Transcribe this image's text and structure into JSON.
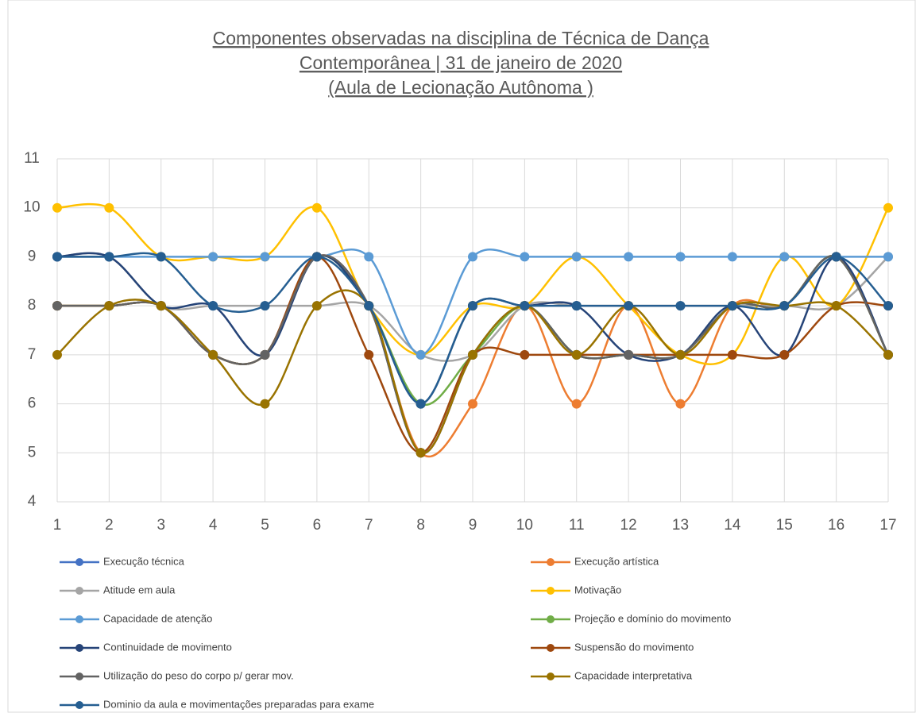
{
  "chart_data": {
    "type": "line",
    "smooth": true,
    "grid": true,
    "title": [
      "Componentes observadas na disciplina de Técnica de Dança",
      "Contemporânea | 31 de janeiro de 2020",
      "(Aula de Lecionação Autônoma )"
    ],
    "x": [
      1,
      2,
      3,
      4,
      5,
      6,
      7,
      8,
      9,
      10,
      11,
      12,
      13,
      14,
      15,
      16,
      17
    ],
    "xlim": [
      1,
      17
    ],
    "xticks": [
      1,
      2,
      3,
      4,
      5,
      6,
      7,
      8,
      9,
      10,
      11,
      12,
      13,
      14,
      15,
      16,
      17
    ],
    "ylim": [
      4,
      11
    ],
    "yticks": [
      4,
      5,
      6,
      7,
      8,
      9,
      10,
      11
    ],
    "legend": "bottom",
    "series": [
      {
        "name": "Execução técnica",
        "color": "#4472c4",
        "values": [
          8,
          8,
          8,
          7,
          7,
          9,
          8,
          5,
          7,
          8,
          7,
          7,
          7,
          8,
          8,
          9,
          7
        ]
      },
      {
        "name": "Execução artística",
        "color": "#ed7d31",
        "values": [
          8,
          8,
          8,
          7,
          7,
          9,
          8,
          5,
          6,
          8,
          6,
          8,
          6,
          8,
          8,
          9,
          7
        ]
      },
      {
        "name": "Atitude em aula",
        "color": "#a5a5a5",
        "values": [
          9,
          9,
          8,
          8,
          8,
          8,
          8,
          7,
          7,
          8,
          8,
          8,
          8,
          8,
          8,
          8,
          9
        ]
      },
      {
        "name": "Motivação",
        "color": "#ffc000",
        "values": [
          10,
          10,
          9,
          9,
          9,
          10,
          8,
          7,
          8,
          8,
          9,
          8,
          7,
          7,
          9,
          8,
          10
        ]
      },
      {
        "name": "Capacidade de atenção",
        "color": "#5b9bd5",
        "values": [
          9,
          9,
          9,
          9,
          9,
          9,
          9,
          7,
          9,
          9,
          9,
          9,
          9,
          9,
          9,
          9,
          9
        ]
      },
      {
        "name": "Projeção e domínio do movimento",
        "color": "#70ad47",
        "values": [
          8,
          8,
          8,
          7,
          7,
          9,
          8,
          6,
          7,
          8,
          7,
          7,
          7,
          8,
          8,
          9,
          7
        ]
      },
      {
        "name": "Continuidade de movimento",
        "color": "#264478",
        "values": [
          9,
          9,
          8,
          8,
          7,
          9,
          8,
          6,
          8,
          8,
          8,
          7,
          7,
          8,
          7,
          9,
          7
        ]
      },
      {
        "name": "Suspensão do movimento",
        "color": "#9e480e",
        "values": [
          8,
          8,
          8,
          7,
          7,
          9,
          7,
          5,
          7,
          7,
          7,
          7,
          7,
          7,
          7,
          8,
          8
        ]
      },
      {
        "name": "Utilização do peso do corpo p/ gerar mov.",
        "color": "#636363",
        "values": [
          8,
          8,
          8,
          7,
          7,
          9,
          8,
          5,
          7,
          8,
          7,
          7,
          7,
          8,
          8,
          9,
          7
        ]
      },
      {
        "name": "Capacidade interpretativa",
        "color": "#997300",
        "values": [
          7,
          8,
          8,
          7,
          6,
          8,
          8,
          5,
          7,
          8,
          7,
          8,
          7,
          8,
          8,
          8,
          7
        ]
      },
      {
        "name": "Dominio da aula e movimentações preparadas para exame",
        "color": "#255e91",
        "values": [
          9,
          9,
          9,
          8,
          8,
          9,
          8,
          6,
          8,
          8,
          8,
          8,
          8,
          8,
          8,
          9,
          8
        ]
      }
    ]
  }
}
